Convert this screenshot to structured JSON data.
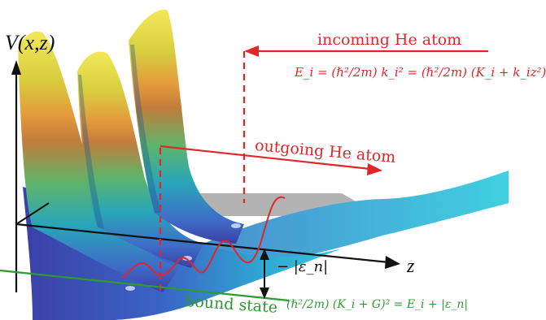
{
  "axes": {
    "y_label": "V(x,z)",
    "z_label": "z"
  },
  "labels": {
    "incoming": "incoming He atom",
    "incoming_energy": "E_i = (ℏ²/2m) k_i² = (ℏ²/2m) (K_i + k_iz²)",
    "outgoing": "outgoing He atom",
    "bound_state": "bound state",
    "bound_energy": "(ℏ²/2m) (K_i + G)² = E_i + |ε_n|",
    "well_depth": "− |ε_n|"
  },
  "colors": {
    "incoming": "#e1262a",
    "outgoing": "#e1262a",
    "bound": "#2f9a2f",
    "axes": "#111111"
  }
}
